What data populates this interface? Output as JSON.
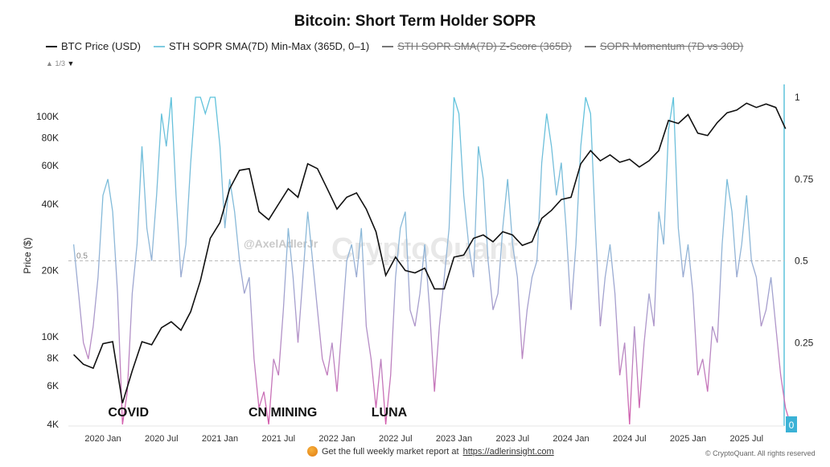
{
  "title": "Bitcoin: Short Term Holder SOPR",
  "legend": [
    {
      "label": "BTC Price (USD)",
      "color": "#111111",
      "active": true
    },
    {
      "label": "STH SOPR SMA(7D) Min-Max (365D, 0–1)",
      "color": "#7fcbe0",
      "active": true
    },
    {
      "label": "STH SOPR SMA(7D) Z-Score (365D)",
      "color": "#777777",
      "active": false
    },
    {
      "label": "SOPR Momentum (7D vs 30D)",
      "color": "#777777",
      "active": false
    }
  ],
  "pager": {
    "up": "▲",
    "text": "1/3",
    "down": "▼"
  },
  "watermark": {
    "handle": "@AxelAdlerJr",
    "brand": "CryptoQuant"
  },
  "footer": {
    "text": "Get the full weekly market report at",
    "link": "https://adlerinsight.com",
    "copyright": "© CryptoQuant. All rights reserved"
  },
  "chart_data": {
    "type": "line",
    "title": "Bitcoin: Short Term Holder SOPR",
    "ylabel": "Price ($)",
    "y_left": {
      "scale": "log",
      "range": [
        4000,
        150000
      ],
      "ticks": [
        4000,
        6000,
        8000,
        10000,
        20000,
        40000,
        60000,
        80000,
        100000
      ],
      "tick_labels": [
        "4K",
        "6K",
        "8K",
        "10K",
        "20K",
        "40K",
        "60K",
        "80K",
        "100K"
      ]
    },
    "y_right": {
      "range": [
        0,
        1
      ],
      "ticks": [
        0,
        0.25,
        0.5,
        0.75,
        1
      ],
      "tick_labels": [
        "0",
        "0.25",
        "0.5",
        "0.75",
        "1"
      ],
      "current_value_label": "0"
    },
    "x_ticks": [
      2020.0,
      2020.5,
      2021.0,
      2021.5,
      2022.0,
      2022.5,
      2023.0,
      2023.5,
      2024.0,
      2024.5,
      2025.0,
      2025.5
    ],
    "x_tick_labels": [
      "2020 Jan",
      "2020 Jul",
      "2021 Jan",
      "2021 Jul",
      "2022 Jan",
      "2022 Jul",
      "2023 Jan",
      "2023 Jul",
      "2024 Jan",
      "2024 Jul",
      "2025 Jan",
      "2025 Jul"
    ],
    "reference_line": {
      "value": 0.5,
      "label": "0.5"
    },
    "annotations": [
      {
        "text": "COVID",
        "x": 2020.25
      },
      {
        "text": "CN MINING",
        "x": 2021.45
      },
      {
        "text": "LUNA",
        "x": 2022.5
      }
    ],
    "btc_price": {
      "name": "BTC Price (USD)",
      "start": 2019.75,
      "step_months": 1,
      "values": [
        8300,
        7500,
        7200,
        9300,
        9500,
        5000,
        7000,
        9500,
        9200,
        11000,
        11700,
        10700,
        13000,
        18000,
        28000,
        33000,
        47000,
        57000,
        58000,
        37000,
        34000,
        40000,
        47000,
        43000,
        61000,
        58000,
        47000,
        38000,
        43000,
        45000,
        38000,
        30000,
        19000,
        23000,
        20000,
        19500,
        20500,
        16500,
        16500,
        23000,
        23500,
        28000,
        29000,
        27000,
        30000,
        29000,
        26000,
        27000,
        34500,
        37500,
        42000,
        43000,
        61000,
        70000,
        63000,
        67000,
        62000,
        64000,
        59000,
        63000,
        70000,
        96000,
        93000,
        102000,
        84000,
        82000,
        94000,
        104000,
        107000,
        115000,
        110000,
        114000,
        110000,
        88000
      ]
    },
    "sopr": {
      "name": "STH SOPR SMA(7D) Min-Max (365D, 0–1)",
      "start": 2019.75,
      "step_months": 0.5,
      "values": [
        0.55,
        0.4,
        0.25,
        0.2,
        0.3,
        0.45,
        0.7,
        0.75,
        0.65,
        0.4,
        0.0,
        0.1,
        0.4,
        0.55,
        0.85,
        0.6,
        0.5,
        0.7,
        0.95,
        0.85,
        1.0,
        0.7,
        0.45,
        0.55,
        0.8,
        1.0,
        1.0,
        0.95,
        1.0,
        1.0,
        0.85,
        0.6,
        0.75,
        0.65,
        0.5,
        0.4,
        0.45,
        0.2,
        0.05,
        0.1,
        0.0,
        0.2,
        0.15,
        0.35,
        0.6,
        0.45,
        0.25,
        0.45,
        0.65,
        0.5,
        0.35,
        0.2,
        0.15,
        0.25,
        0.1,
        0.3,
        0.5,
        0.55,
        0.45,
        0.6,
        0.3,
        0.2,
        0.05,
        0.2,
        0.0,
        0.15,
        0.45,
        0.6,
        0.65,
        0.35,
        0.3,
        0.4,
        0.55,
        0.35,
        0.1,
        0.3,
        0.45,
        0.6,
        1.0,
        0.95,
        0.7,
        0.55,
        0.45,
        0.85,
        0.75,
        0.5,
        0.35,
        0.4,
        0.6,
        0.75,
        0.55,
        0.45,
        0.2,
        0.35,
        0.45,
        0.5,
        0.8,
        0.95,
        0.85,
        0.7,
        0.8,
        0.6,
        0.35,
        0.55,
        0.85,
        1.0,
        0.95,
        0.6,
        0.3,
        0.45,
        0.55,
        0.4,
        0.15,
        0.25,
        0.0,
        0.3,
        0.05,
        0.25,
        0.4,
        0.3,
        0.65,
        0.55,
        0.9,
        1.0,
        0.6,
        0.45,
        0.55,
        0.4,
        0.15,
        0.2,
        0.1,
        0.3,
        0.25,
        0.55,
        0.75,
        0.65,
        0.45,
        0.55,
        0.7,
        0.5,
        0.45,
        0.3,
        0.35,
        0.45,
        0.3,
        0.15,
        0.05,
        0.0
      ]
    }
  }
}
